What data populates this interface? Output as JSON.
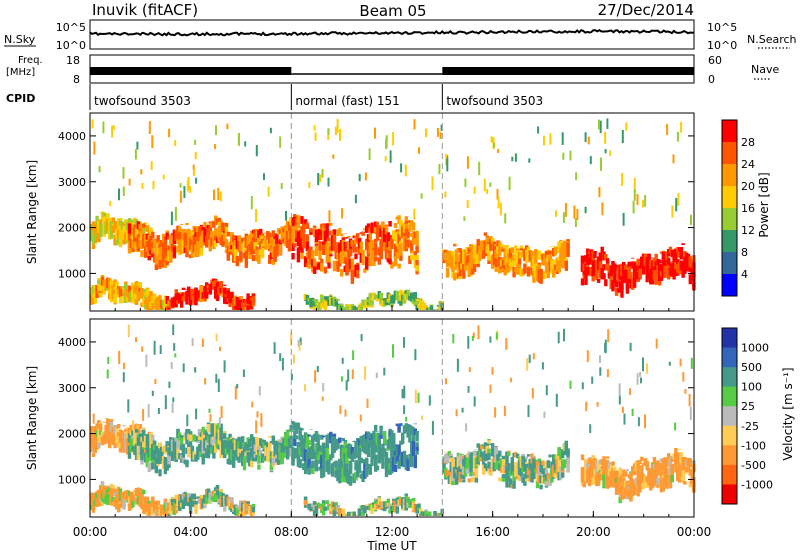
{
  "header": {
    "station": "Inuvik (fitACF)",
    "beam": "Beam 05",
    "date": "27/Dec/2014"
  },
  "labels": {
    "nsky": "N.Sky",
    "nsearch": "N.Search",
    "freq": "Freq.",
    "mhz": "[MHz]",
    "nave": "Nave",
    "cpid": "CPID"
  },
  "noise_panel": {
    "tick_top": "10^5",
    "tick_bottom": "10^0",
    "right_top": "10^5",
    "right_bottom": "10^0"
  },
  "freq_panel": {
    "left_ticks": [
      "18",
      "8"
    ],
    "right_ticks": [
      "60",
      "0"
    ]
  },
  "cpid_segments": [
    {
      "label": "twofsound 3503",
      "start_h": 0,
      "end_h": 8
    },
    {
      "label": "normal (fast) 151",
      "start_h": 8,
      "end_h": 14
    },
    {
      "label": "twofsound 3503",
      "start_h": 14,
      "end_h": 24
    }
  ],
  "power_colorbar": {
    "title": "Power [dB]",
    "ticks": [
      "28",
      "24",
      "20",
      "16",
      "12",
      "8",
      "4"
    ],
    "colors": [
      "#ff0000",
      "#ff5500",
      "#ff9900",
      "#ffcc00",
      "#99cc33",
      "#339966",
      "#336699",
      "#0000ff"
    ]
  },
  "velocity_colorbar": {
    "title": "Velocity [m s⁻¹]",
    "ticks": [
      "1000",
      "500",
      "100",
      "25",
      "-25",
      "-100",
      "-500",
      "-1000"
    ],
    "colors": [
      "#2233aa",
      "#3366bb",
      "#449988",
      "#55cc44",
      "#bbbbbb",
      "#ffcc55",
      "#ff9933",
      "#ff6611",
      "#ee0000"
    ]
  },
  "chart_data": {
    "type": "heatmap",
    "x_label": "Time UT",
    "y_label": "Slant Range [km]",
    "x_range_hours": [
      0,
      24
    ],
    "x_ticks": [
      "00:00",
      "04:00",
      "08:00",
      "12:00",
      "16:00",
      "20:00",
      "00:00"
    ],
    "y_range_km": [
      180,
      4500
    ],
    "y_ticks": [
      "1000",
      "2000",
      "3000",
      "4000"
    ],
    "panels": [
      "power",
      "velocity"
    ],
    "echo_regions": [
      {
        "t0": 0.0,
        "t1": 2.5,
        "r0": 1500,
        "r1": 2100,
        "power": 16,
        "velocity": -200
      },
      {
        "t0": 1.5,
        "t1": 8.0,
        "r0": 1300,
        "r1": 2000,
        "power": 22,
        "velocity": 150
      },
      {
        "t0": 0.0,
        "t1": 3.0,
        "r0": 250,
        "r1": 700,
        "power": 18,
        "velocity": -150
      },
      {
        "t0": 3.0,
        "t1": 6.5,
        "r0": 250,
        "r1": 600,
        "power": 26,
        "velocity": 60
      },
      {
        "t0": 8.0,
        "t1": 12.0,
        "r0": 1000,
        "r1": 2000,
        "power": 24,
        "velocity": 300
      },
      {
        "t0": 12.0,
        "t1": 13.0,
        "r0": 1000,
        "r1": 2100,
        "power": 20,
        "velocity": 400
      },
      {
        "t0": 14.0,
        "t1": 19.0,
        "r0": 900,
        "r1": 1600,
        "power": 20,
        "velocity": 60
      },
      {
        "t0": 19.5,
        "t1": 24.0,
        "r0": 700,
        "r1": 1400,
        "power": 28,
        "velocity": -200
      },
      {
        "t0": 8.5,
        "t1": 14.0,
        "r0": 200,
        "r1": 450,
        "power": 12,
        "velocity": 50
      }
    ]
  }
}
